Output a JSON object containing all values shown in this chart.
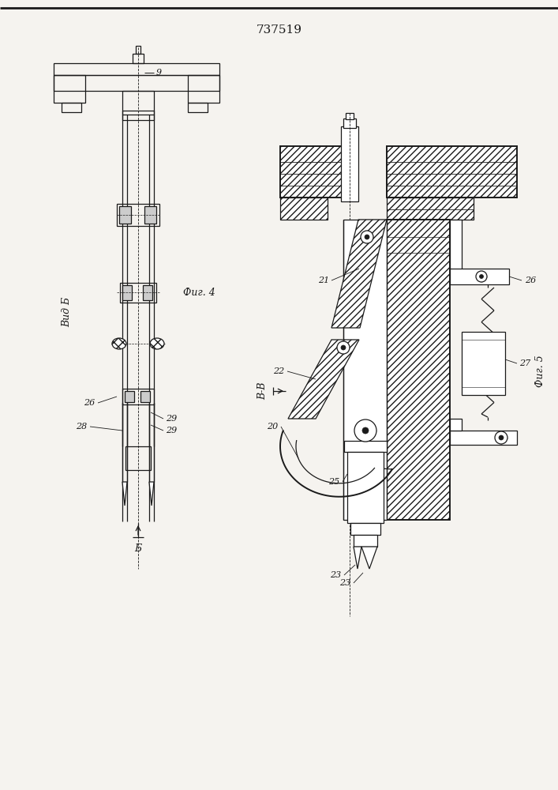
{
  "title": "737519",
  "bg_color": "#f5f3ef",
  "line_color": "#1a1a1a",
  "labels": {
    "vid_b": "Вид Б",
    "fig4": "Фиг. 4",
    "fig5": "Фиг. 5",
    "b_b": "В-В",
    "b_arrow": "Б",
    "n9": "9",
    "n20": "20",
    "n21": "21",
    "n22": "22",
    "n23": "23",
    "n25": "25",
    "n26a": "26",
    "n26b": "26",
    "n27": "27",
    "n28": "28",
    "n29a": "29",
    "n29b": "29"
  }
}
